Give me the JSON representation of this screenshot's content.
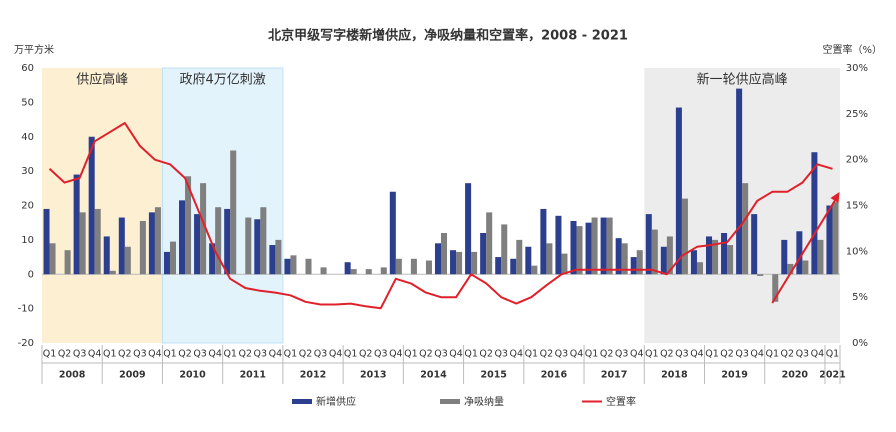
{
  "chart_data": {
    "type": "bar_line",
    "title": "北京甲级写字楼新增供应，净吸纳量和空置率，2008 - 2021",
    "y_label": "万平方米",
    "y2_label": "空置率（%）",
    "categories": [
      "Q1",
      "Q2",
      "Q3",
      "Q4",
      "Q1",
      "Q2",
      "Q3",
      "Q4",
      "Q1",
      "Q2",
      "Q3",
      "Q4",
      "Q1",
      "Q2",
      "Q3",
      "Q4",
      "Q1",
      "Q2",
      "Q3",
      "Q4",
      "Q1",
      "Q2",
      "Q3",
      "Q4",
      "Q1",
      "Q2",
      "Q3",
      "Q4",
      "Q1",
      "Q2",
      "Q3",
      "Q4",
      "Q1",
      "Q2",
      "Q3",
      "Q4",
      "Q1",
      "Q2",
      "Q3",
      "Q4",
      "Q1",
      "Q2",
      "Q3",
      "Q4",
      "Q1",
      "Q2",
      "Q3",
      "Q4",
      "Q1",
      "Q2",
      "Q3",
      "Q4",
      "Q1"
    ],
    "years": [
      "2008",
      "2009",
      "2010",
      "2011",
      "2012",
      "2013",
      "2014",
      "2015",
      "2016",
      "2017",
      "2018",
      "2019",
      "2020",
      "2021"
    ],
    "annotations": [
      "供应高峰",
      "政府4万亿刺激",
      "新一轮供应高峰"
    ],
    "ylim": [
      -20,
      60
    ],
    "yticks": [
      -20,
      -10,
      0,
      10,
      20,
      30,
      40,
      50,
      60
    ],
    "y2lim": [
      0,
      30
    ],
    "y2ticks": [
      {
        "value": 0,
        "label": "0%"
      },
      {
        "value": 5,
        "label": "5%"
      },
      {
        "value": 10,
        "label": "10%"
      },
      {
        "value": 15,
        "label": "15%"
      },
      {
        "value": 20,
        "label": "20%"
      },
      {
        "value": 25,
        "label": "25%"
      },
      {
        "value": 30,
        "label": "30%"
      }
    ],
    "grid": false,
    "legend": "bottom",
    "series": [
      {
        "name": "新增供应",
        "type": "bar",
        "color": "#2b3f8e",
        "values": [
          19,
          0,
          29,
          40,
          11,
          16.5,
          0,
          18,
          6.5,
          21.5,
          17.5,
          9,
          19,
          0,
          16,
          8.5,
          4.5,
          0,
          0,
          0,
          3.5,
          0,
          0,
          24,
          0,
          0,
          9,
          7,
          26.5,
          12,
          5,
          4.5,
          8,
          19,
          17,
          15.5,
          15,
          16.5,
          10.5,
          5,
          17.5,
          8,
          48.5,
          7,
          11,
          12,
          54,
          17.5,
          0,
          10,
          12.5,
          35.5,
          20
        ]
      },
      {
        "name": "净吸纳量",
        "type": "bar",
        "color": "#7f7f7f",
        "values": [
          9,
          7,
          18,
          19,
          1,
          8,
          15.5,
          19.5,
          9.5,
          28.5,
          26.5,
          19.5,
          36,
          16.5,
          19.5,
          10,
          5.5,
          4.5,
          2,
          0,
          1.5,
          1.5,
          2,
          4.5,
          4.5,
          4,
          12,
          6.5,
          6.5,
          18,
          14.5,
          10,
          2.5,
          9,
          6,
          14,
          16.5,
          16.5,
          9,
          7,
          13,
          11,
          22,
          3.5,
          10,
          8.5,
          26.5,
          -0.5,
          -8,
          3,
          4,
          10,
          21
        ]
      },
      {
        "name": "空置率",
        "type": "line",
        "axis": "y2",
        "color": "#e0202a",
        "values": [
          19,
          17.5,
          18,
          22,
          23,
          24,
          21.5,
          20,
          19.5,
          18,
          14,
          10,
          7,
          6,
          5.7,
          5.5,
          5.2,
          4.5,
          4.2,
          4.2,
          4.3,
          4,
          3.8,
          7,
          6.5,
          5.5,
          5,
          5,
          7.5,
          6.5,
          5,
          4.3,
          5,
          6.3,
          7.5,
          8,
          8,
          8,
          8,
          8,
          8,
          7.5,
          9.5,
          10.5,
          10.7,
          11,
          13,
          15.5,
          16.5,
          16.5,
          17.5,
          19.5,
          19
        ]
      }
    ]
  }
}
